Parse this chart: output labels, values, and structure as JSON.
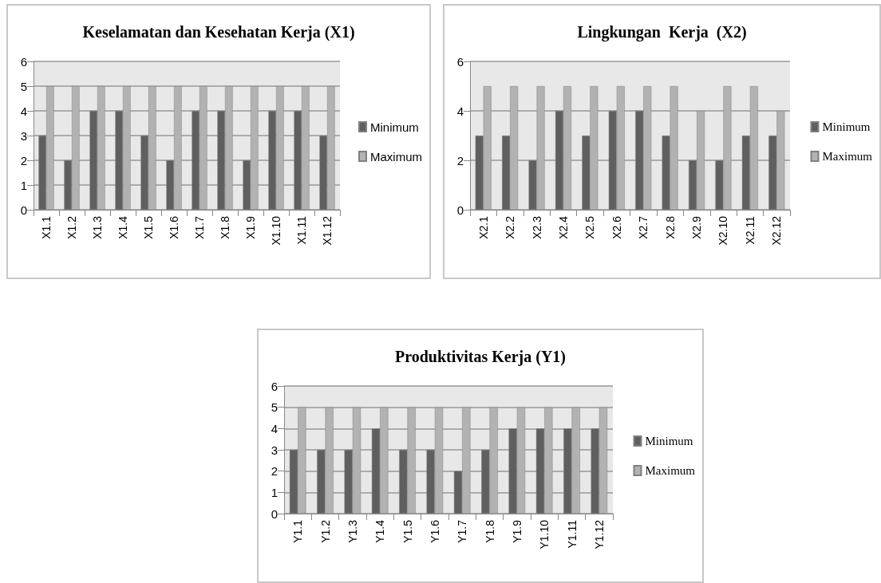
{
  "chart_data": [
    {
      "type": "bar",
      "title": "Keselamatan dan Kesehatan Kerja (X1)",
      "categories": [
        "X1.1",
        "X1.2",
        "X1.3",
        "X1.4",
        "X1.5",
        "X1.6",
        "X1.7",
        "X1.8",
        "X1.9",
        "X1.10",
        "X1.11",
        "X1.12"
      ],
      "series": [
        {
          "name": "Minimum",
          "color": "#5f5f5f",
          "values": [
            3,
            2,
            4,
            4,
            3,
            2,
            4,
            4,
            2,
            4,
            4,
            3
          ]
        },
        {
          "name": "Maximum",
          "color": "#b2b2b2",
          "values": [
            5,
            5,
            5,
            5,
            5,
            5,
            5,
            5,
            5,
            5,
            5,
            5
          ]
        }
      ],
      "ylim": [
        0,
        6
      ],
      "yticks": [
        0,
        1,
        2,
        3,
        4,
        5,
        6
      ],
      "grid": "y",
      "legend": "right"
    },
    {
      "type": "bar",
      "title": "Lingkungan  Kerja  (X2)",
      "categories": [
        "X2.1",
        "X2.2",
        "X2.3",
        "X2.4",
        "X2.5",
        "X2.6",
        "X2.7",
        "X2.8",
        "X2.9",
        "X2.10",
        "X2.11",
        "X2.12"
      ],
      "series": [
        {
          "name": "Minimum",
          "color": "#5f5f5f",
          "values": [
            3,
            3,
            2,
            4,
            3,
            4,
            4,
            3,
            2,
            2,
            3,
            3
          ]
        },
        {
          "name": "Maximum",
          "color": "#b2b2b2",
          "values": [
            5,
            5,
            5,
            5,
            5,
            5,
            5,
            5,
            4,
            5,
            5,
            4
          ]
        }
      ],
      "ylim": [
        0,
        6
      ],
      "yticks": [
        0,
        2,
        4,
        6
      ],
      "grid": "y",
      "legend": "right"
    },
    {
      "type": "bar",
      "title": "Produktivitas Kerja (Y1)",
      "categories": [
        "Y1.1",
        "Y1.2",
        "Y1.3",
        "Y1.4",
        "Y1.5",
        "Y1.6",
        "Y1.7",
        "Y1.8",
        "Y1.9",
        "Y1.10",
        "Y1.11",
        "Y1.12"
      ],
      "series": [
        {
          "name": "Minimum",
          "color": "#5f5f5f",
          "values": [
            3,
            3,
            3,
            4,
            3,
            3,
            2,
            3,
            4,
            4,
            4,
            4
          ]
        },
        {
          "name": "Maximum",
          "color": "#b2b2b2",
          "values": [
            5,
            5,
            5,
            5,
            5,
            5,
            5,
            5,
            5,
            5,
            5,
            5
          ]
        }
      ],
      "ylim": [
        0,
        6
      ],
      "yticks": [
        0,
        1,
        2,
        3,
        4,
        5,
        6
      ],
      "grid": "y",
      "legend": "right"
    }
  ]
}
